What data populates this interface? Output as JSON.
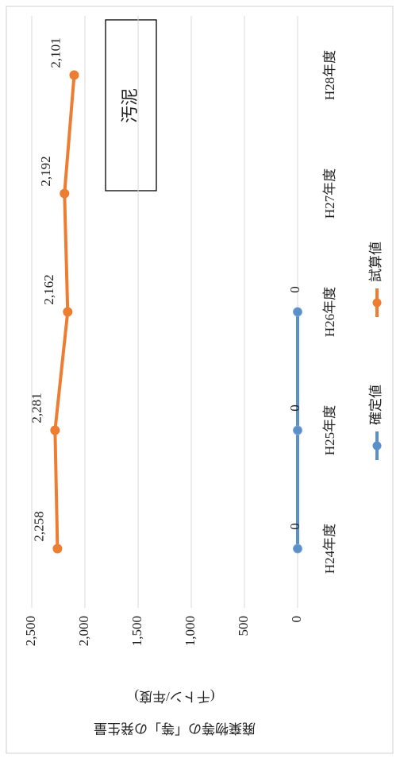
{
  "chart_data": {
    "type": "line",
    "y_label": [
      "廃棄物等の「等」の発生量",
      "(千トン/年度)"
    ],
    "annotation": "汚泥",
    "categories": [
      "H24年度",
      "H25年度",
      "H26年度",
      "H27年度",
      "H28年度"
    ],
    "series": [
      {
        "name": "確定値",
        "color": "#5b8fc9",
        "values": [
          0,
          0,
          0,
          null,
          null
        ],
        "value_labels": [
          "0",
          "0",
          "0",
          null,
          null
        ]
      },
      {
        "name": "試算値",
        "color": "#ed7d31",
        "values": [
          2258,
          2281,
          2162,
          2192,
          2101
        ],
        "value_labels": [
          "2,258",
          "2,281",
          "2,162",
          "2,192",
          "2,101"
        ]
      }
    ],
    "ylim": [
      0,
      2500
    ],
    "yticks": [
      0,
      500,
      {
        "value": 1000,
        "label": "1,000"
      },
      {
        "value": 1500,
        "label": "1,500"
      },
      {
        "value": 2000,
        "label": "2,000"
      },
      {
        "value": 2500,
        "label": "2,500"
      }
    ],
    "grid": true
  }
}
